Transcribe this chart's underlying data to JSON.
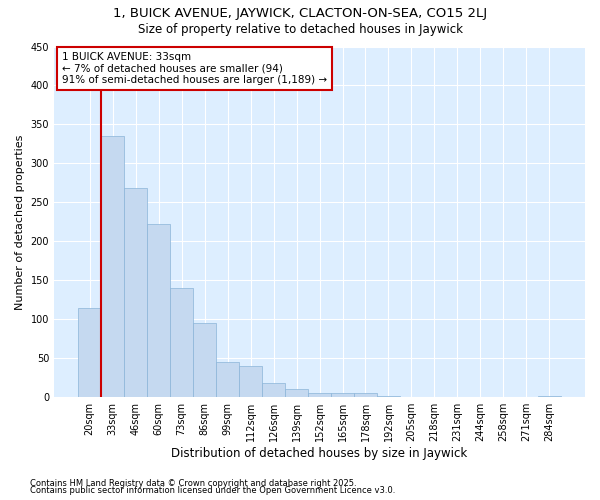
{
  "title1": "1, BUICK AVENUE, JAYWICK, CLACTON-ON-SEA, CO15 2LJ",
  "title2": "Size of property relative to detached houses in Jaywick",
  "xlabel": "Distribution of detached houses by size in Jaywick",
  "ylabel": "Number of detached properties",
  "categories": [
    "20sqm",
    "33sqm",
    "46sqm",
    "60sqm",
    "73sqm",
    "86sqm",
    "99sqm",
    "112sqm",
    "126sqm",
    "139sqm",
    "152sqm",
    "165sqm",
    "178sqm",
    "192sqm",
    "205sqm",
    "218sqm",
    "231sqm",
    "244sqm",
    "258sqm",
    "271sqm",
    "284sqm"
  ],
  "values": [
    115,
    335,
    268,
    222,
    140,
    95,
    45,
    40,
    18,
    10,
    6,
    5,
    6,
    2,
    0,
    0,
    0,
    0,
    0,
    0,
    2
  ],
  "bar_color": "#c5d9f0",
  "bar_edge_color": "#8ab4d8",
  "plot_bg_color": "#ddeeff",
  "fig_bg_color": "#ffffff",
  "grid_color": "#ffffff",
  "annotation_text1": "1 BUICK AVENUE: 33sqm",
  "annotation_text2": "← 7% of detached houses are smaller (94)",
  "annotation_text3": "91% of semi-detached houses are larger (1,189) →",
  "annotation_box_facecolor": "#ffffff",
  "annotation_box_edgecolor": "#cc0000",
  "vline_color": "#cc0000",
  "vline_x": 0.5,
  "footnote1": "Contains HM Land Registry data © Crown copyright and database right 2025.",
  "footnote2": "Contains public sector information licensed under the Open Government Licence v3.0.",
  "ylim": [
    0,
    450
  ],
  "yticks": [
    0,
    50,
    100,
    150,
    200,
    250,
    300,
    350,
    400,
    450
  ],
  "title1_fontsize": 9.5,
  "title2_fontsize": 8.5,
  "xlabel_fontsize": 8.5,
  "ylabel_fontsize": 8,
  "tick_fontsize": 7,
  "annot_fontsize": 7.5,
  "footnote_fontsize": 6
}
